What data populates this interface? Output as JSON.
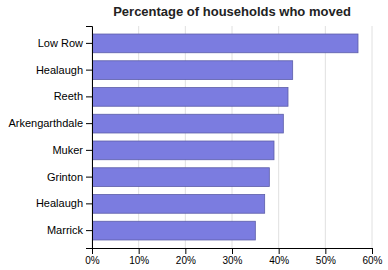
{
  "chart_data": {
    "type": "bar",
    "orientation": "horizontal",
    "title": "Percentage of households who moved",
    "categories": [
      "Low Row",
      "Healaugh",
      "Reeth",
      "Arkengarthdale",
      "Muker",
      "Grinton",
      "Healaugh",
      "Marrick"
    ],
    "values": [
      57,
      43,
      42,
      41,
      39,
      38,
      37,
      35
    ],
    "color": "#7B7CE0",
    "xlim": [
      0,
      60
    ],
    "xticks": [
      {
        "value": 0,
        "label": "0%"
      },
      {
        "value": 10,
        "label": "10%"
      },
      {
        "value": 20,
        "label": "20%"
      },
      {
        "value": 30,
        "label": "30%"
      },
      {
        "value": 40,
        "label": "40%"
      },
      {
        "value": 50,
        "label": "50%"
      },
      {
        "value": 60,
        "label": "60%"
      }
    ],
    "grid": true
  }
}
